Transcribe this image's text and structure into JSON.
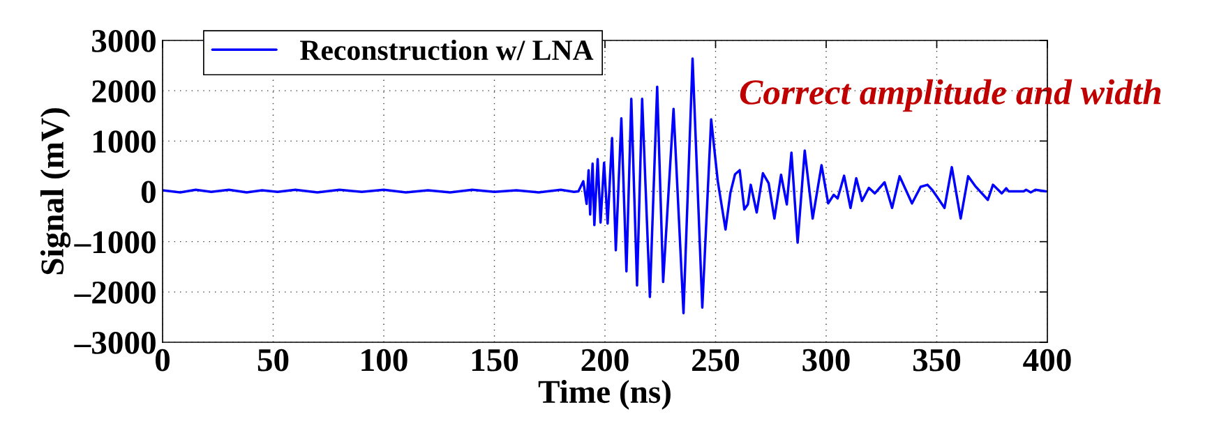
{
  "chart_data": {
    "type": "line",
    "xlabel": "Time (ns)",
    "ylabel": "Signal (mV)",
    "annotations": [
      "Correct amplitude and width"
    ],
    "xlim": [
      0,
      400
    ],
    "xticks": [
      0,
      50,
      100,
      150,
      200,
      250,
      300,
      350,
      400
    ],
    "ylim": [
      -3000,
      3000
    ],
    "yticks": [
      {
        "value": -3000,
        "label": "–3000"
      },
      {
        "value": -2000,
        "label": "–2000"
      },
      {
        "value": -1000,
        "label": "–1000"
      },
      0,
      1000,
      2000,
      3000
    ],
    "grid": true,
    "legend": "top left",
    "series": [
      {
        "name": "Reconstruction w/ LNA",
        "color": "#0000ff",
        "x": [
          0,
          8,
          15,
          22,
          30,
          38,
          45,
          52,
          60,
          70,
          80,
          90,
          100,
          110,
          120,
          130,
          140,
          150,
          160,
          170,
          180,
          186,
          188,
          190.2,
          191.7,
          192.6,
          193.3,
          194.4,
          195.2,
          196.7,
          198,
          199.6,
          201.2,
          203.2,
          204.9,
          207.4,
          209.7,
          211.9,
          214.5,
          216.8,
          220.3,
          223.6,
          226.3,
          231,
          235.5,
          239.6,
          244,
          248,
          251,
          254.5,
          256.7,
          258.8,
          260.9,
          263,
          264.6,
          265.9,
          268.6,
          271.4,
          274,
          276.6,
          279.6,
          282.2,
          284.3,
          287.1,
          290.3,
          293.9,
          297.9,
          300.9,
          303.4,
          305.2,
          308.1,
          311,
          313.6,
          316.2,
          319.3,
          322,
          326.4,
          329.8,
          333.2,
          338.8,
          342.7,
          345.8,
          347.9,
          350,
          353.5,
          356.8,
          360.8,
          364.2,
          367.3,
          373.1,
          375.4,
          379.4,
          381.4,
          382.5,
          389.3,
          390.4,
          392.5,
          394.6,
          399.3
        ],
        "values": [
          20,
          -20,
          30,
          -10,
          30,
          -20,
          20,
          -10,
          30,
          -20,
          30,
          -10,
          30,
          -20,
          20,
          -20,
          30,
          -10,
          20,
          -20,
          30,
          -10,
          0,
          200,
          -250,
          420,
          -460,
          550,
          -670,
          640,
          -620,
          570,
          -640,
          1060,
          -1170,
          1450,
          -1590,
          1840,
          -1870,
          1840,
          -2100,
          2080,
          -1800,
          1640,
          -2420,
          2640,
          -2310,
          1430,
          200,
          -760,
          -30,
          340,
          420,
          -360,
          -260,
          130,
          -420,
          360,
          160,
          -540,
          330,
          -260,
          770,
          -1020,
          810,
          -540,
          520,
          -240,
          -70,
          -140,
          310,
          -330,
          260,
          -190,
          70,
          -40,
          180,
          -330,
          300,
          -240,
          90,
          130,
          30,
          -100,
          -330,
          480,
          -540,
          300,
          110,
          -170,
          130,
          -40,
          60,
          0,
          0,
          30,
          -20,
          30,
          0
        ]
      }
    ]
  }
}
